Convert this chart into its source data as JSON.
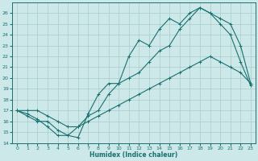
{
  "xlabel": "Humidex (Indice chaleur)",
  "bg_color": "#cce8e8",
  "line_color": "#1a7070",
  "grid_color": "#aacccc",
  "xlim": [
    -0.5,
    23.5
  ],
  "ylim": [
    14,
    27
  ],
  "xticks": [
    0,
    1,
    2,
    3,
    4,
    5,
    6,
    7,
    8,
    9,
    10,
    11,
    12,
    13,
    14,
    15,
    16,
    17,
    18,
    19,
    20,
    21,
    22,
    23
  ],
  "yticks": [
    14,
    15,
    16,
    17,
    18,
    19,
    20,
    21,
    22,
    23,
    24,
    25,
    26
  ],
  "line1_x": [
    0,
    1,
    2,
    3,
    4,
    5,
    6,
    7,
    8,
    9,
    10,
    11,
    12,
    13,
    14,
    15,
    16,
    17,
    18,
    19,
    20,
    21,
    22,
    23
  ],
  "line1_y": [
    17.0,
    16.7,
    16.2,
    15.5,
    14.7,
    14.7,
    15.5,
    16.5,
    17.0,
    18.5,
    19.5,
    20.0,
    20.5,
    21.5,
    22.5,
    23.0,
    24.5,
    25.5,
    26.5,
    26.0,
    25.5,
    25.0,
    23.0,
    19.5
  ],
  "line2_x": [
    0,
    1,
    2,
    3,
    4,
    5,
    6,
    7,
    8,
    9,
    10,
    11,
    12,
    13,
    14,
    15,
    16,
    17,
    18,
    19,
    20,
    21,
    22,
    23
  ],
  "line2_y": [
    17.0,
    16.5,
    16.0,
    16.0,
    15.2,
    14.7,
    14.5,
    16.7,
    18.5,
    19.5,
    19.5,
    22.0,
    23.5,
    23.0,
    24.5,
    25.5,
    25.0,
    26.0,
    26.5,
    26.0,
    25.0,
    24.0,
    21.5,
    19.3
  ],
  "line3_x": [
    0,
    1,
    2,
    3,
    4,
    5,
    6,
    7,
    8,
    9,
    10,
    11,
    12,
    13,
    14,
    15,
    16,
    17,
    18,
    19,
    20,
    21,
    22,
    23
  ],
  "line3_y": [
    17.0,
    17.0,
    17.0,
    16.5,
    16.0,
    15.5,
    15.5,
    16.0,
    16.5,
    17.0,
    17.5,
    18.0,
    18.5,
    19.0,
    19.5,
    20.0,
    20.5,
    21.0,
    21.5,
    22.0,
    21.5,
    21.0,
    20.5,
    19.5
  ]
}
